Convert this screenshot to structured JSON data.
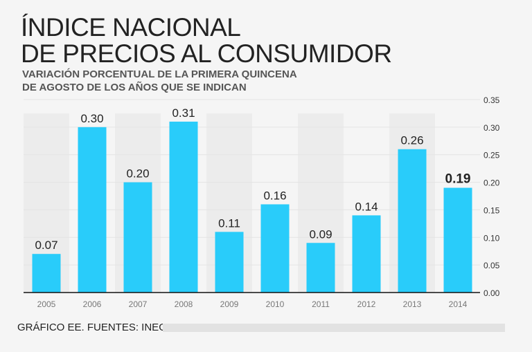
{
  "title_line1": "ÍNDICE NACIONAL",
  "title_line2": "DE PRECIOS AL CONSUMIDOR",
  "subtitle_line1": "VARIACIÓN PORCENTUAL DE LA PRIMERA QUINCENA",
  "subtitle_line2": "DE AGOSTO DE LOS AÑOS QUE SE INDICAN",
  "footer": "GRÁFICO EE. FUENTES: INEGI.",
  "chart_data": {
    "type": "bar",
    "categories": [
      "2005",
      "2006",
      "2007",
      "2008",
      "2009",
      "2010",
      "2011",
      "2012",
      "2013",
      "2014"
    ],
    "values": [
      0.07,
      0.3,
      0.2,
      0.31,
      0.11,
      0.16,
      0.09,
      0.14,
      0.26,
      0.19
    ],
    "data_labels": [
      "0.07",
      "0.30",
      "0.20",
      "0.31",
      "0.11",
      "0.16",
      "0.09",
      "0.14",
      "0.26",
      "0.19"
    ],
    "highlight": "2014",
    "ylim": [
      0,
      0.35
    ],
    "yticks": [
      "0.00",
      "0.05",
      "0.10",
      "0.15",
      "0.20",
      "0.25",
      "0.30",
      "0.35"
    ],
    "yaxis_position": "right",
    "grid": true,
    "bar_color": "#29ccfa"
  }
}
